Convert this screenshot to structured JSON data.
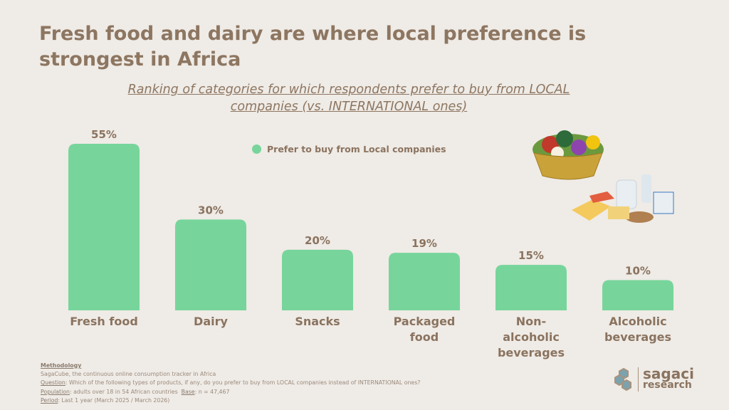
{
  "title": "Fresh food and dairy are where local preference is strongest in Africa",
  "subtitle": "Ranking of categories for which respondents prefer to buy from LOCAL companies (vs. INTERNATIONAL ones)",
  "legend": "Prefer to buy from Local companies",
  "colors": {
    "bar": "#77d59b",
    "text": "#8a735f",
    "background": "#efebe6"
  },
  "chart_data": {
    "type": "bar",
    "title": "Ranking of categories for which respondents prefer to buy from LOCAL companies (vs. INTERNATIONAL ones)",
    "categories": [
      "Fresh food",
      "Dairy",
      "Snacks",
      "Packaged food",
      "Non-alcoholic beverages",
      "Alcoholic beverages"
    ],
    "series": [
      {
        "name": "Prefer to buy from Local companies",
        "values": [
          55,
          30,
          20,
          19,
          15,
          10
        ]
      }
    ],
    "data_labels": [
      "55%",
      "30%",
      "20%",
      "19%",
      "15%",
      "10%"
    ],
    "ylim": [
      0,
      55
    ],
    "grid": false,
    "legend_position": "top-center"
  },
  "methodology": {
    "heading": "Methodology",
    "line1": "SagaCube, the continuous online consumption tracker in Africa",
    "question_label": "Question",
    "question": ": Which of the following types of products, if any, do you prefer to buy from LOCAL companies instead of INTERNATIONAL ones?",
    "population_label": "Population",
    "population": ": adults over 18 in 54 African countries  ",
    "base_label": "Base",
    "base": ": n = 47,467",
    "period_label": "Period",
    "period": ": Last 1 year (March 2025 / March 2026)"
  },
  "logo": {
    "line1": "sagaci",
    "line2": "research"
  }
}
